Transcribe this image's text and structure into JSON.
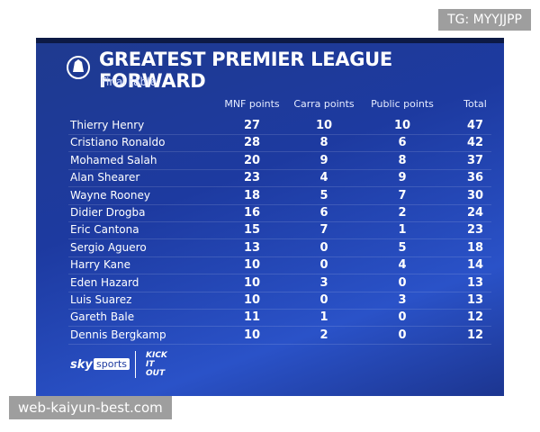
{
  "header": {
    "title": "GREATEST PREMIER LEAGUE FORWARD",
    "subtitle": "Final table"
  },
  "table": {
    "columns": [
      "MNF points",
      "Carra points",
      "Public points",
      "Total"
    ],
    "rows": [
      [
        "Thierry Henry",
        27,
        10,
        10,
        47
      ],
      [
        "Cristiano Ronaldo",
        28,
        8,
        6,
        42
      ],
      [
        "Mohamed Salah",
        20,
        9,
        8,
        37
      ],
      [
        "Alan Shearer",
        23,
        4,
        9,
        36
      ],
      [
        "Wayne Rooney",
        18,
        5,
        7,
        30
      ],
      [
        "Didier Drogba",
        16,
        6,
        2,
        24
      ],
      [
        "Eric Cantona",
        15,
        7,
        1,
        23
      ],
      [
        "Sergio Aguero",
        13,
        0,
        5,
        18
      ],
      [
        "Harry Kane",
        10,
        0,
        4,
        14
      ],
      [
        "Eden Hazard",
        10,
        3,
        0,
        13
      ],
      [
        "Luis Suarez",
        10,
        0,
        3,
        13
      ],
      [
        "Gareth Bale",
        11,
        1,
        0,
        12
      ],
      [
        "Dennis Bergkamp",
        10,
        2,
        0,
        12
      ]
    ]
  },
  "footer": {
    "broadcaster": [
      "sky",
      "sports"
    ],
    "campaign": "KICK IT OUT"
  },
  "watermarks": {
    "top": "TG: MYYJJPP",
    "bottom": "web-kaiyun-best.com"
  }
}
